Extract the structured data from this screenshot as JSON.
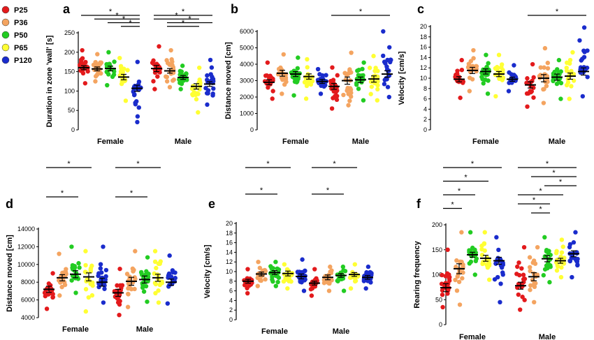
{
  "figure": {
    "legend": [
      {
        "name": "P25",
        "color": "#e31a1c"
      },
      {
        "name": "P36",
        "color": "#f4a460"
      },
      {
        "name": "P50",
        "color": "#22cc22"
      },
      {
        "name": "P65",
        "color": "#ffff33"
      },
      {
        "name": "P120",
        "color": "#1a2ccc"
      }
    ]
  },
  "chart_data": [
    {
      "panel": "a",
      "type": "scatter",
      "ylabel": "Duration in zone 'wall' [s]",
      "categories": [
        "Female",
        "Male"
      ],
      "ylim": [
        0,
        250
      ],
      "yticks": [
        0,
        50,
        100,
        150,
        200,
        250
      ],
      "series": [
        {
          "name": "P25",
          "means": [
            160,
            158
          ],
          "sem": [
            5,
            8
          ],
          "range": [
            [
              120,
              205
            ],
            [
              105,
              215
            ]
          ]
        },
        {
          "name": "P36",
          "means": [
            157,
            152
          ],
          "sem": [
            5,
            6
          ],
          "range": [
            [
              125,
              195
            ],
            [
              110,
              205
            ]
          ]
        },
        {
          "name": "P50",
          "means": [
            158,
            135
          ],
          "sem": [
            6,
            5
          ],
          "range": [
            [
              115,
              200
            ],
            [
              105,
              165
            ]
          ]
        },
        {
          "name": "P65",
          "means": [
            136,
            112
          ],
          "sem": [
            7,
            7
          ],
          "range": [
            [
              75,
              185
            ],
            [
              45,
              160
            ]
          ]
        },
        {
          "name": "P120",
          "means": [
            107,
            118
          ],
          "sem": [
            8,
            6
          ],
          "range": [
            [
              20,
              175
            ],
            [
              65,
              180
            ]
          ]
        }
      ],
      "significance": [
        {
          "group": 0,
          "from": 0,
          "to": 4,
          "label": "*"
        },
        {
          "group": 0,
          "from": 1,
          "to": 4,
          "label": "*"
        },
        {
          "group": 0,
          "from": 2,
          "to": 4,
          "label": "*"
        },
        {
          "group": 0,
          "from": 3,
          "to": 4,
          "label": "*"
        },
        {
          "group": 1,
          "from": 0,
          "to": 4,
          "label": "*"
        },
        {
          "group": 1,
          "from": 0,
          "to": 3,
          "label": "*"
        },
        {
          "group": 1,
          "from": 1,
          "to": 4,
          "label": "*"
        },
        {
          "group": 1,
          "from": 1,
          "to": 3,
          "label": "*"
        }
      ]
    },
    {
      "panel": "b",
      "type": "scatter",
      "ylabel": "Distance moved [cm]",
      "categories": [
        "Female",
        "Male"
      ],
      "ylim": [
        0,
        6000
      ],
      "yticks": [
        0,
        1000,
        2000,
        3000,
        4000,
        5000,
        6000
      ],
      "series": [
        {
          "name": "P25",
          "means": [
            2900,
            2650
          ],
          "sem": [
            150,
            180
          ],
          "range": [
            [
              1900,
              4100
            ],
            [
              1300,
              3800
            ]
          ]
        },
        {
          "name": "P36",
          "means": [
            3450,
            3000
          ],
          "sem": [
            180,
            220
          ],
          "range": [
            [
              2200,
              4600
            ],
            [
              1500,
              4700
            ]
          ]
        },
        {
          "name": "P50",
          "means": [
            3400,
            3050
          ],
          "sem": [
            150,
            170
          ],
          "range": [
            [
              2100,
              4400
            ],
            [
              1800,
              4100
            ]
          ]
        },
        {
          "name": "P65",
          "means": [
            3250,
            3100
          ],
          "sem": [
            160,
            190
          ],
          "range": [
            [
              1900,
              4300
            ],
            [
              1800,
              4500
            ]
          ]
        },
        {
          "name": "P120",
          "means": [
            2950,
            3400
          ],
          "sem": [
            120,
            200
          ],
          "range": [
            [
              2200,
              3700
            ],
            [
              2000,
              6000
            ]
          ]
        }
      ],
      "significance": [
        {
          "group": 1,
          "from": 0,
          "to": 4,
          "label": "*"
        }
      ]
    },
    {
      "panel": "c",
      "type": "scatter",
      "ylabel": "Velocity [cm/s]",
      "categories": [
        "Female",
        "Male"
      ],
      "ylim": [
        0,
        20
      ],
      "yticks": [
        0,
        2,
        4,
        6,
        8,
        10,
        12,
        14,
        16,
        18,
        20
      ],
      "series": [
        {
          "name": "P25",
          "means": [
            9.8,
            8.7
          ],
          "sem": [
            0.5,
            0.6
          ],
          "range": [
            [
              6.2,
              13.5
            ],
            [
              4.5,
              12.7
            ]
          ]
        },
        {
          "name": "P36",
          "means": [
            11.5,
            10.0
          ],
          "sem": [
            0.6,
            0.7
          ],
          "range": [
            [
              7.5,
              15.4
            ],
            [
              5.2,
              15.8
            ]
          ]
        },
        {
          "name": "P50",
          "means": [
            11.3,
            10.2
          ],
          "sem": [
            0.5,
            0.6
          ],
          "range": [
            [
              7.0,
              14.5
            ],
            [
              6.0,
              13.5
            ]
          ]
        },
        {
          "name": "P65",
          "means": [
            10.8,
            10.4
          ],
          "sem": [
            0.5,
            0.6
          ],
          "range": [
            [
              6.5,
              14.5
            ],
            [
              6.0,
              15.0
            ]
          ]
        },
        {
          "name": "P120",
          "means": [
            9.8,
            11.3
          ],
          "sem": [
            0.4,
            0.7
          ],
          "range": [
            [
              7.5,
              12.5
            ],
            [
              6.5,
              19.8
            ]
          ]
        }
      ],
      "significance": [
        {
          "group": 1,
          "from": 0,
          "to": 4,
          "label": "*"
        }
      ]
    },
    {
      "panel": "d",
      "type": "scatter",
      "ylabel": "Distance moved [cm]",
      "categories": [
        "Female",
        "Male"
      ],
      "ylim": [
        4000,
        14000
      ],
      "yticks": [
        4000,
        6000,
        8000,
        10000,
        12000,
        14000
      ],
      "series": [
        {
          "name": "P25",
          "means": [
            7200,
            6800
          ],
          "sem": [
            350,
            400
          ],
          "range": [
            [
              5000,
              9000
            ],
            [
              4300,
              9500
            ]
          ]
        },
        {
          "name": "P36",
          "means": [
            8500,
            8100
          ],
          "sem": [
            350,
            450
          ],
          "range": [
            [
              6500,
              11200
            ],
            [
              5200,
              11500
            ]
          ]
        },
        {
          "name": "P50",
          "means": [
            8900,
            8300
          ],
          "sem": [
            400,
            400
          ],
          "range": [
            [
              6800,
              12000
            ],
            [
              5800,
              10800
            ]
          ]
        },
        {
          "name": "P65",
          "means": [
            8600,
            8500
          ],
          "sem": [
            450,
            400
          ],
          "range": [
            [
              4700,
              11500
            ],
            [
              5700,
              11500
            ]
          ]
        },
        {
          "name": "P120",
          "means": [
            8000,
            8000
          ],
          "sem": [
            450,
            350
          ],
          "range": [
            [
              5700,
              12000
            ],
            [
              5600,
              11000
            ]
          ]
        }
      ],
      "significance": [
        {
          "group": 0,
          "from": 0,
          "to": 3,
          "label": "*"
        },
        {
          "group": 0,
          "from": 0,
          "to": 2,
          "label": "*"
        },
        {
          "group": 1,
          "from": 0,
          "to": 3,
          "label": "*"
        },
        {
          "group": 1,
          "from": 0,
          "to": 2,
          "label": "*"
        }
      ]
    },
    {
      "panel": "e",
      "type": "scatter",
      "ylabel": "Velocity [cm/s]",
      "categories": [
        "Female",
        "Male"
      ],
      "ylim": [
        0,
        20
      ],
      "yticks": [
        0,
        2,
        4,
        6,
        8,
        10,
        12,
        14,
        16,
        18,
        20
      ],
      "series": [
        {
          "name": "P25",
          "means": [
            8.0,
            7.6
          ],
          "sem": [
            0.4,
            0.4
          ],
          "range": [
            [
              5.5,
              10.5
            ],
            [
              5.0,
              10.5
            ]
          ]
        },
        {
          "name": "P36",
          "means": [
            9.5,
            8.8
          ],
          "sem": [
            0.4,
            0.5
          ],
          "range": [
            [
              7.0,
              12.0
            ],
            [
              6.0,
              11.0
            ]
          ]
        },
        {
          "name": "P50",
          "means": [
            9.8,
            9.2
          ],
          "sem": [
            0.4,
            0.4
          ],
          "range": [
            [
              7.0,
              12.0
            ],
            [
              6.0,
              11.0
            ]
          ]
        },
        {
          "name": "P65",
          "means": [
            9.6,
            9.4
          ],
          "sem": [
            0.5,
            0.4
          ],
          "range": [
            [
              6.5,
              11.5
            ],
            [
              6.5,
              11.5
            ]
          ]
        },
        {
          "name": "P120",
          "means": [
            9.0,
            8.8
          ],
          "sem": [
            0.5,
            0.4
          ],
          "range": [
            [
              6.0,
              12.5
            ],
            [
              6.5,
              11.0
            ]
          ]
        }
      ],
      "significance": [
        {
          "group": 0,
          "from": 0,
          "to": 3,
          "label": "*"
        },
        {
          "group": 0,
          "from": 0,
          "to": 2,
          "label": "*"
        },
        {
          "group": 1,
          "from": 0,
          "to": 3,
          "label": "*"
        },
        {
          "group": 1,
          "from": 0,
          "to": 2,
          "label": "*"
        }
      ]
    },
    {
      "panel": "f",
      "type": "scatter",
      "ylabel": "Rearing frequency",
      "categories": [
        "Female",
        "Male"
      ],
      "ylim": [
        0,
        200
      ],
      "yticks": [
        0,
        50,
        100,
        150,
        200
      ],
      "series": [
        {
          "name": "P25",
          "means": [
            74,
            78
          ],
          "sem": [
            8,
            7
          ],
          "range": [
            [
              35,
              150
            ],
            [
              30,
              155
            ]
          ]
        },
        {
          "name": "P36",
          "means": [
            112,
            96
          ],
          "sem": [
            10,
            8
          ],
          "range": [
            [
              40,
              185
            ],
            [
              45,
              155
            ]
          ]
        },
        {
          "name": "P50",
          "means": [
            140,
            132
          ],
          "sem": [
            5,
            6
          ],
          "range": [
            [
              100,
              185
            ],
            [
              85,
              175
            ]
          ]
        },
        {
          "name": "P65",
          "means": [
            133,
            128
          ],
          "sem": [
            6,
            5
          ],
          "range": [
            [
              90,
              185
            ],
            [
              95,
              170
            ]
          ]
        },
        {
          "name": "P120",
          "means": [
            128,
            142
          ],
          "sem": [
            7,
            6
          ],
          "range": [
            [
              45,
              175
            ],
            [
              95,
              185
            ]
          ]
        }
      ],
      "significance": [
        {
          "group": 0,
          "from": 0,
          "to": 4,
          "label": "*"
        },
        {
          "group": 0,
          "from": 0,
          "to": 3,
          "label": "*"
        },
        {
          "group": 0,
          "from": 0,
          "to": 2,
          "label": "*"
        },
        {
          "group": 0,
          "from": 0,
          "to": 1,
          "label": "*"
        },
        {
          "group": 1,
          "from": 0,
          "to": 4,
          "label": "*"
        },
        {
          "group": 1,
          "from": 1,
          "to": 4,
          "label": "*"
        },
        {
          "group": 1,
          "from": 2,
          "to": 4,
          "label": "*"
        },
        {
          "group": 1,
          "from": 0,
          "to": 3,
          "label": "*"
        },
        {
          "group": 1,
          "from": 0,
          "to": 2,
          "label": "*"
        },
        {
          "group": 1,
          "from": 1,
          "to": 2,
          "label": "*"
        }
      ]
    }
  ]
}
